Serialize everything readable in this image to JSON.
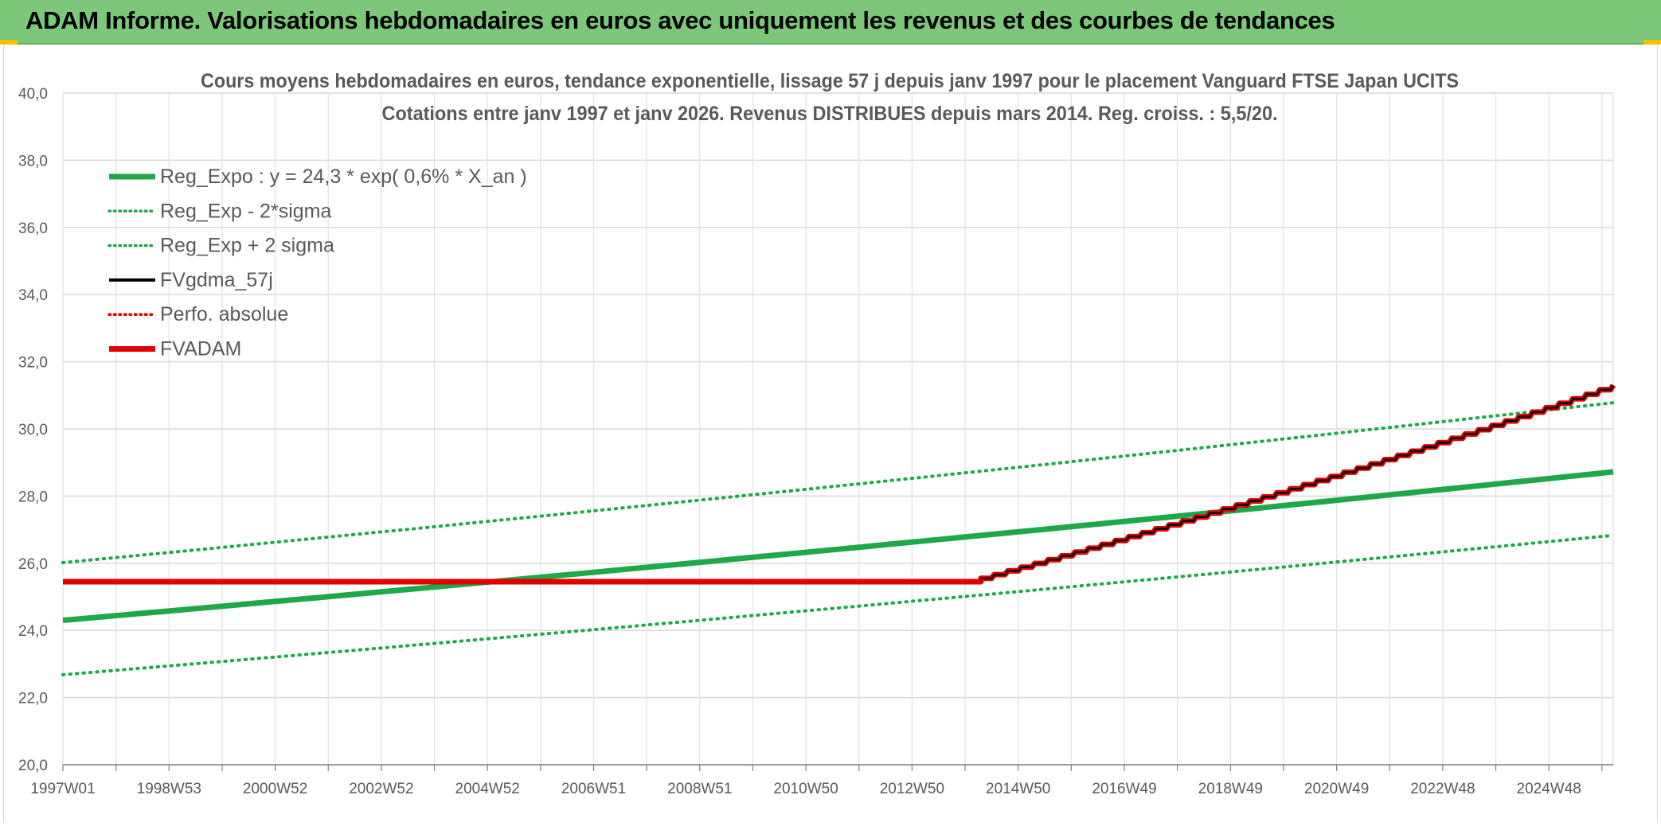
{
  "header": {
    "title": "ADAM Informe. Valorisations hebdomadaires en euros avec uniquement les revenus et des courbes de tendances",
    "background": "#7dc77a"
  },
  "chart_data": {
    "type": "line",
    "title_lines": [
      "Cours moyens hebdomadaires en euros, tendance exponentielle, lissage 57 j depuis janv 1997 pour le placement Vanguard FTSE Japan UCITS",
      "Cotations entre janv 1997 et janv 2026. Revenus DISTRIBUES depuis mars 2014. Reg. croiss. : 5,5/20."
    ],
    "xlabel": "",
    "ylabel": "",
    "ylim": [
      20,
      40
    ],
    "y_ticks": [
      "20,0",
      "22,0",
      "24,0",
      "26,0",
      "28,0",
      "30,0",
      "32,0",
      "34,0",
      "36,0",
      "38,0",
      "40,0"
    ],
    "x_range": [
      0,
      29.05
    ],
    "x_tick_labels": [
      "1997W01",
      "1998W53",
      "2000W52",
      "2002W52",
      "2004W52",
      "2006W51",
      "2008W51",
      "2010W50",
      "2012W50",
      "2014W50",
      "2016W49",
      "2018W49",
      "2020W49",
      "2022W48",
      "2024W48"
    ],
    "grid": true,
    "legend_position": "top-left",
    "legend": [
      {
        "name": "Reg_Expo : y = 24,3 * exp( 0,6% *  X_an )",
        "color": "#1fa84a",
        "style": "solid-thick"
      },
      {
        "name": "Reg_Exp - 2*sigma",
        "color": "#1fa84a",
        "style": "dotted"
      },
      {
        "name": "Reg_Exp + 2 sigma",
        "color": "#1fa84a",
        "style": "dotted"
      },
      {
        "name": "FVgdma_57j",
        "color": "#000000",
        "style": "solid"
      },
      {
        "name": "Perfo. absolue",
        "color": "#e00000",
        "style": "dotted"
      },
      {
        "name": "FVADAM",
        "color": "#e00000",
        "style": "solid-thick"
      }
    ],
    "series": [
      {
        "name": "Reg_Expo",
        "color": "#1fa84a",
        "style": "solid-thick",
        "x": [
          0,
          29.05
        ],
        "y": [
          24.3,
          28.72
        ]
      },
      {
        "name": "Reg_Exp - 2*sigma",
        "color": "#1fa84a",
        "style": "dotted",
        "x": [
          0,
          29.05
        ],
        "y": [
          22.68,
          26.83
        ]
      },
      {
        "name": "Reg_Exp + 2 sigma",
        "color": "#1fa84a",
        "style": "dotted",
        "x": [
          0,
          29.05
        ],
        "y": [
          26.02,
          30.78
        ]
      },
      {
        "name": "FVADAM",
        "color": "#e00000",
        "style": "solid-thick",
        "x": [
          0,
          17.2,
          17.2,
          29.05
        ],
        "y": [
          25.45,
          25.45,
          25.55,
          31.3
        ]
      },
      {
        "name": "FVgdma_57j",
        "color": "#000000",
        "style": "solid",
        "x": [
          17.2,
          29.05
        ],
        "y": [
          25.55,
          31.3
        ]
      }
    ]
  }
}
